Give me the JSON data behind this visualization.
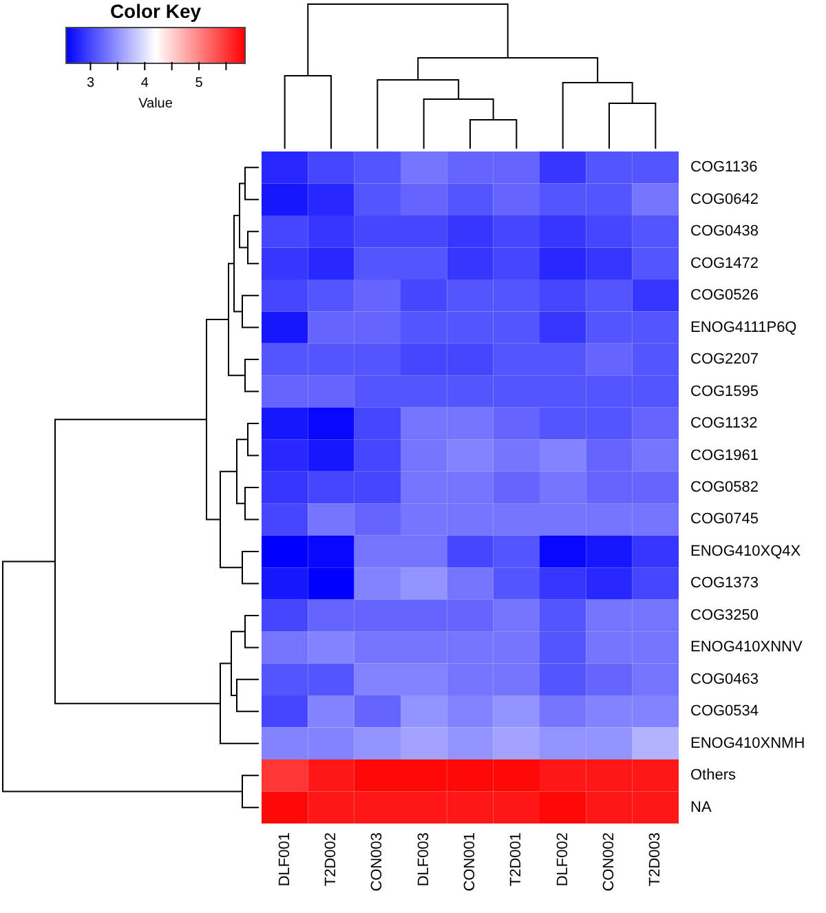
{
  "chart_data": {
    "type": "heatmap",
    "legend_title": "Color Key",
    "clabel": "Value",
    "categories": [
      "DLF001",
      "T2D002",
      "CON003",
      "DLF003",
      "CON001",
      "T2D001",
      "DLF002",
      "CON002",
      "T2D003"
    ],
    "y_categories": [
      "COG1136",
      "COG0642",
      "COG0438",
      "COG1472",
      "COG0526",
      "ENOG4111P6Q",
      "COG2207",
      "COG1595",
      "COG1132",
      "COG1961",
      "COG0582",
      "COG0745",
      "ENOG410XQ4X",
      "COG1373",
      "COG3250",
      "ENOG410XNNV",
      "COG0463",
      "COG0534",
      "ENOG410XNMH",
      "Others",
      "NA"
    ],
    "cells": [
      [
        2.8,
        3.0,
        3.1,
        3.3,
        3.2,
        3.2,
        2.9,
        3.1,
        3.1
      ],
      [
        2.7,
        2.8,
        3.1,
        3.2,
        3.1,
        3.2,
        3.1,
        3.1,
        3.3
      ],
      [
        3.0,
        2.9,
        3.0,
        3.0,
        2.9,
        3.0,
        2.9,
        3.0,
        3.1
      ],
      [
        2.9,
        2.8,
        3.1,
        3.1,
        2.9,
        3.0,
        2.8,
        2.9,
        3.1
      ],
      [
        3.0,
        3.1,
        3.2,
        3.0,
        3.1,
        3.1,
        3.0,
        3.1,
        2.9
      ],
      [
        2.7,
        3.2,
        3.2,
        3.1,
        3.1,
        3.1,
        2.9,
        3.1,
        3.1
      ],
      [
        3.1,
        3.1,
        3.1,
        3.0,
        3.0,
        3.1,
        3.1,
        3.2,
        3.1
      ],
      [
        3.2,
        3.2,
        3.1,
        3.1,
        3.1,
        3.1,
        3.1,
        3.1,
        3.1
      ],
      [
        2.7,
        2.6,
        3.0,
        3.3,
        3.3,
        3.2,
        3.1,
        3.1,
        3.2
      ],
      [
        2.8,
        2.7,
        3.0,
        3.3,
        3.4,
        3.3,
        3.4,
        3.2,
        3.3
      ],
      [
        2.9,
        3.0,
        3.0,
        3.3,
        3.3,
        3.2,
        3.3,
        3.2,
        3.2
      ],
      [
        3.0,
        3.3,
        3.2,
        3.3,
        3.3,
        3.3,
        3.3,
        3.3,
        3.3
      ],
      [
        2.5,
        2.6,
        3.3,
        3.3,
        3.0,
        3.1,
        2.6,
        2.7,
        2.9
      ],
      [
        2.7,
        2.5,
        3.4,
        3.5,
        3.3,
        3.1,
        2.9,
        2.8,
        3.0
      ],
      [
        3.0,
        3.2,
        3.2,
        3.2,
        3.2,
        3.3,
        3.1,
        3.3,
        3.3
      ],
      [
        3.3,
        3.4,
        3.3,
        3.3,
        3.3,
        3.3,
        3.1,
        3.3,
        3.3
      ],
      [
        3.1,
        3.1,
        3.4,
        3.4,
        3.3,
        3.3,
        3.1,
        3.2,
        3.3
      ],
      [
        3.0,
        3.4,
        3.2,
        3.5,
        3.4,
        3.5,
        3.3,
        3.4,
        3.4
      ],
      [
        3.4,
        3.4,
        3.5,
        3.6,
        3.5,
        3.6,
        3.5,
        3.5,
        3.7
      ],
      [
        5.5,
        5.7,
        5.8,
        5.8,
        5.8,
        5.8,
        5.7,
        5.7,
        5.7
      ],
      [
        5.8,
        5.7,
        5.7,
        5.7,
        5.7,
        5.7,
        5.8,
        5.7,
        5.7
      ]
    ],
    "clim": [
      2.55,
      5.85
    ],
    "cticks": [
      3,
      {
        "value": 3.5,
        "label": null
      },
      4,
      {
        "value": 4.5,
        "label": null
      },
      5,
      {
        "value": 5.5,
        "label": null
      }
    ]
  }
}
